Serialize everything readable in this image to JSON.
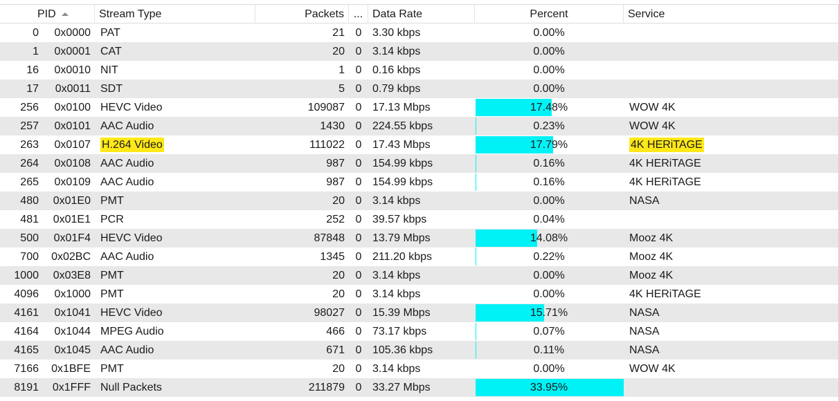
{
  "header": {
    "pid": "PID",
    "stream_type": "Stream Type",
    "packets": "Packets",
    "errors": "...",
    "data_rate": "Data Rate",
    "percent": "Percent",
    "service": "Service"
  },
  "colors": {
    "bar": "#00f2f6",
    "highlight": "#ffe818",
    "alt_row": "#e8e8e8"
  },
  "rows": [
    {
      "pid": "0",
      "hex": "0x0000",
      "type": "PAT",
      "packets": "21",
      "err": "0",
      "rate": "3.30 kbps",
      "percent": "0.00%",
      "pct": 0.0,
      "service": ""
    },
    {
      "pid": "1",
      "hex": "0x0001",
      "type": "CAT",
      "packets": "20",
      "err": "0",
      "rate": "3.14 kbps",
      "percent": "0.00%",
      "pct": 0.0,
      "service": ""
    },
    {
      "pid": "16",
      "hex": "0x0010",
      "type": "NIT",
      "packets": "1",
      "err": "0",
      "rate": "0.16 kbps",
      "percent": "0.00%",
      "pct": 0.0,
      "service": ""
    },
    {
      "pid": "17",
      "hex": "0x0011",
      "type": "SDT",
      "packets": "5",
      "err": "0",
      "rate": "0.79 kbps",
      "percent": "0.00%",
      "pct": 0.0,
      "service": ""
    },
    {
      "pid": "256",
      "hex": "0x0100",
      "type": "HEVC Video",
      "packets": "109087",
      "err": "0",
      "rate": "17.13 Mbps",
      "percent": "17.48%",
      "pct": 17.48,
      "service": "WOW 4K"
    },
    {
      "pid": "257",
      "hex": "0x0101",
      "type": "AAC Audio",
      "packets": "1430",
      "err": "0",
      "rate": "224.55 kbps",
      "percent": "0.23%",
      "pct": 0.23,
      "service": "WOW 4K"
    },
    {
      "pid": "263",
      "hex": "0x0107",
      "type": "H.264 Video",
      "packets": "111022",
      "err": "0",
      "rate": "17.43 Mbps",
      "percent": "17.79%",
      "pct": 17.79,
      "service": "4K HERiTAGE",
      "highlight": true
    },
    {
      "pid": "264",
      "hex": "0x0108",
      "type": "AAC Audio",
      "packets": "987",
      "err": "0",
      "rate": "154.99 kbps",
      "percent": "0.16%",
      "pct": 0.16,
      "service": "4K HERiTAGE"
    },
    {
      "pid": "265",
      "hex": "0x0109",
      "type": "AAC Audio",
      "packets": "987",
      "err": "0",
      "rate": "154.99 kbps",
      "percent": "0.16%",
      "pct": 0.16,
      "service": "4K HERiTAGE"
    },
    {
      "pid": "480",
      "hex": "0x01E0",
      "type": "PMT",
      "packets": "20",
      "err": "0",
      "rate": "3.14 kbps",
      "percent": "0.00%",
      "pct": 0.0,
      "service": "NASA"
    },
    {
      "pid": "481",
      "hex": "0x01E1",
      "type": "PCR",
      "packets": "252",
      "err": "0",
      "rate": "39.57 kbps",
      "percent": "0.04%",
      "pct": 0.04,
      "service": ""
    },
    {
      "pid": "500",
      "hex": "0x01F4",
      "type": "HEVC Video",
      "packets": "87848",
      "err": "0",
      "rate": "13.79 Mbps",
      "percent": "14.08%",
      "pct": 14.08,
      "service": "Mooz 4K"
    },
    {
      "pid": "700",
      "hex": "0x02BC",
      "type": "AAC Audio",
      "packets": "1345",
      "err": "0",
      "rate": "211.20 kbps",
      "percent": "0.22%",
      "pct": 0.22,
      "service": "Mooz 4K"
    },
    {
      "pid": "1000",
      "hex": "0x03E8",
      "type": "PMT",
      "packets": "20",
      "err": "0",
      "rate": "3.14 kbps",
      "percent": "0.00%",
      "pct": 0.0,
      "service": "Mooz 4K"
    },
    {
      "pid": "4096",
      "hex": "0x1000",
      "type": "PMT",
      "packets": "20",
      "err": "0",
      "rate": "3.14 kbps",
      "percent": "0.00%",
      "pct": 0.0,
      "service": "4K HERiTAGE"
    },
    {
      "pid": "4161",
      "hex": "0x1041",
      "type": "HEVC Video",
      "packets": "98027",
      "err": "0",
      "rate": "15.39 Mbps",
      "percent": "15.71%",
      "pct": 15.71,
      "service": "NASA"
    },
    {
      "pid": "4164",
      "hex": "0x1044",
      "type": "MPEG Audio",
      "packets": "466",
      "err": "0",
      "rate": "73.17 kbps",
      "percent": "0.07%",
      "pct": 0.07,
      "service": "NASA"
    },
    {
      "pid": "4165",
      "hex": "0x1045",
      "type": "AAC Audio",
      "packets": "671",
      "err": "0",
      "rate": "105.36 kbps",
      "percent": "0.11%",
      "pct": 0.11,
      "service": "NASA"
    },
    {
      "pid": "7166",
      "hex": "0x1BFE",
      "type": "PMT",
      "packets": "20",
      "err": "0",
      "rate": "3.14 kbps",
      "percent": "0.00%",
      "pct": 0.0,
      "service": "WOW 4K"
    },
    {
      "pid": "8191",
      "hex": "0x1FFF",
      "type": "Null Packets",
      "packets": "211879",
      "err": "0",
      "rate": "33.27 Mbps",
      "percent": "33.95%",
      "pct": 33.95,
      "service": ""
    }
  ]
}
